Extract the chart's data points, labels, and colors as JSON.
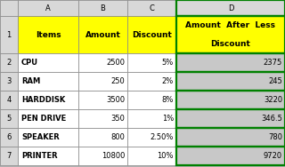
{
  "rows": [
    [
      "CPU",
      "2500",
      "5%",
      "2375"
    ],
    [
      "RAM",
      "250",
      "2%",
      "245"
    ],
    [
      "HARDDISK",
      "3500",
      "8%",
      "3220"
    ],
    [
      "PEN DRIVE",
      "350",
      "1%",
      "346.5"
    ],
    [
      "SPEAKER",
      "800",
      "2.50%",
      "780"
    ],
    [
      "PRINTER",
      "10800",
      "10%",
      "9720"
    ]
  ],
  "header_bg": "#FFFF00",
  "data_bg_abc": "#FFFFFF",
  "data_bg_d": "#C8C8C8",
  "col_header_bg": "#D8D8D8",
  "row_num_bg": "#D8D8D8",
  "d_border": "#008000",
  "fig_bg": "#B0B0B0",
  "figsize": [
    3.2,
    1.88
  ],
  "dpi": 100,
  "col_letters": [
    "A",
    "B",
    "C",
    "D"
  ],
  "row_numbers": [
    "1",
    "2",
    "3",
    "4",
    "5",
    "6",
    "7"
  ],
  "header_items": [
    "Items",
    "Amount",
    "Discount",
    "Amount  After  Less\n\nDiscount"
  ]
}
